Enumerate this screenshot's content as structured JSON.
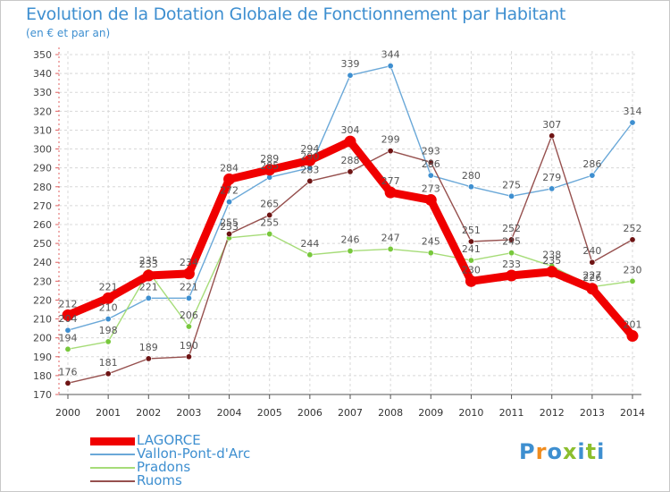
{
  "title": "Evolution de la Dotation Globale de Fonctionnement par Habitant",
  "subtitle": "(en € et par an)",
  "logo": {
    "letters": [
      "P",
      "r",
      "o",
      "x",
      "i",
      "t",
      "i"
    ],
    "colors": [
      "#3e8fd0",
      "#f08c1e",
      "#3e8fd0",
      "#8cbe2e",
      "#3e8fd0",
      "#8cbe2e",
      "#3e8fd0"
    ]
  },
  "chart_data": {
    "type": "line",
    "title": "Evolution de la Dotation Globale de Fonctionnement par Habitant",
    "ylabel": "(en € et par an)",
    "xlabel": "",
    "ylim": [
      170,
      350
    ],
    "ytick_step": 10,
    "grid": true,
    "categories": [
      "2000",
      "2001",
      "2002",
      "2003",
      "2004",
      "2005",
      "2006",
      "2007",
      "2008",
      "2009",
      "2010",
      "2011",
      "2012",
      "2013",
      "2014"
    ],
    "series": [
      {
        "name": "Vallon-Pont-d'Arc",
        "color": "#6aa8d8",
        "marker": "#3e8fd0",
        "weight": "thin",
        "values": [
          204,
          210,
          221,
          221,
          272,
          285,
          290,
          339,
          344,
          286,
          280,
          275,
          279,
          286,
          314
        ]
      },
      {
        "name": "Pradons",
        "color": "#a6dc78",
        "marker": "#78c83c",
        "weight": "thin",
        "values": [
          194,
          198,
          235,
          206,
          253,
          255,
          244,
          246,
          247,
          245,
          241,
          245,
          238,
          227,
          230
        ]
      },
      {
        "name": "Ruoms",
        "color": "#96504e",
        "marker": "#6e1414",
        "weight": "thin",
        "values": [
          176,
          181,
          189,
          190,
          255,
          265,
          283,
          288,
          299,
          293,
          251,
          252,
          307,
          240,
          252
        ]
      },
      {
        "name": "LAGORCE",
        "color": "#f00000",
        "marker": "#f00000",
        "weight": "thick",
        "values": [
          212,
          221,
          233,
          234,
          284,
          289,
          294,
          304,
          277,
          273,
          230,
          233,
          235,
          226,
          201
        ]
      }
    ],
    "legend_order": [
      "LAGORCE",
      "Vallon-Pont-d'Arc",
      "Pradons",
      "Ruoms"
    ],
    "legend_position": "bottom-left"
  }
}
